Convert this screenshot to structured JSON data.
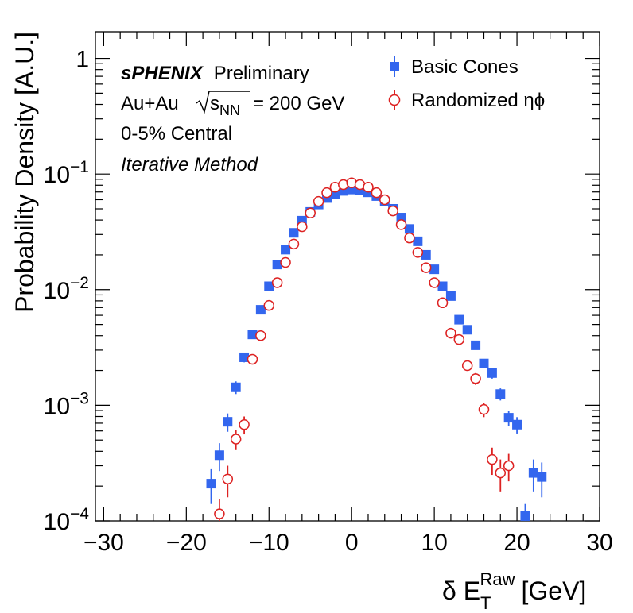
{
  "chart_data": {
    "type": "scatter",
    "xlabel": {
      "main": "δ E",
      "sup": "Raw",
      "sub": "T",
      "unit": "[GeV]"
    },
    "ylabel": "Probability Density [A.U.]",
    "xlim": [
      -31,
      30
    ],
    "ylim": [
      0.0001,
      1.7
    ],
    "yscale": "log",
    "grid": false,
    "legend_position": "top-right",
    "x_ticks": [
      -30,
      -20,
      -10,
      0,
      10,
      20,
      30
    ],
    "x_tick_labels": [
      "−30",
      "−20",
      "−10",
      "0",
      "10",
      "20",
      "30"
    ],
    "y_ticks": [
      1,
      0.1,
      0.01,
      0.001,
      0.0001
    ],
    "y_tick_labels": [
      {
        "base": "1",
        "exp": ""
      },
      {
        "base": "10",
        "exp": "−1"
      },
      {
        "base": "10",
        "exp": "−2"
      },
      {
        "base": "10",
        "exp": "−3"
      },
      {
        "base": "10",
        "exp": "−4"
      }
    ],
    "annotations": {
      "experiment": "sPHENIX",
      "status": "Preliminary",
      "system": "Au+Au",
      "sqrt_s_label": "s",
      "sqrt_s_sub": "NN",
      "energy": "= 200 GeV",
      "centrality": "0-5% Central",
      "method": "Iterative Method"
    },
    "series": [
      {
        "name": "Basic Cones",
        "marker": "filled-square",
        "color": "#3366ee",
        "points": [
          {
            "x": -17,
            "y": 0.00021,
            "err": 7e-05
          },
          {
            "x": -16,
            "y": 0.00037,
            "err": 0.0001
          },
          {
            "x": -15,
            "y": 0.00072,
            "err": 0.00013
          },
          {
            "x": -14,
            "y": 0.00143,
            "err": 0.00018
          },
          {
            "x": -13,
            "y": 0.0026,
            "err": 0.00025
          },
          {
            "x": -12,
            "y": 0.0041,
            "err": 0.0003
          },
          {
            "x": -11,
            "y": 0.0067,
            "err": 0.0004
          },
          {
            "x": -10,
            "y": 0.0107,
            "err": 0.0005
          },
          {
            "x": -9,
            "y": 0.0165,
            "err": 0.0006
          },
          {
            "x": -8,
            "y": 0.0222,
            "err": 0.0007
          },
          {
            "x": -7,
            "y": 0.031,
            "err": 0.0008
          },
          {
            "x": -6,
            "y": 0.0395,
            "err": 0.0009
          },
          {
            "x": -5,
            "y": 0.047,
            "err": 0.001
          },
          {
            "x": -4,
            "y": 0.0545,
            "err": 0.001
          },
          {
            "x": -3,
            "y": 0.062,
            "err": 0.001
          },
          {
            "x": -2,
            "y": 0.0675,
            "err": 0.001
          },
          {
            "x": -1,
            "y": 0.0715,
            "err": 0.001
          },
          {
            "x": 0,
            "y": 0.0735,
            "err": 0.001
          },
          {
            "x": 1,
            "y": 0.0725,
            "err": 0.001
          },
          {
            "x": 2,
            "y": 0.0695,
            "err": 0.001
          },
          {
            "x": 3,
            "y": 0.0645,
            "err": 0.001
          },
          {
            "x": 4,
            "y": 0.058,
            "err": 0.001
          },
          {
            "x": 5,
            "y": 0.05,
            "err": 0.001
          },
          {
            "x": 6,
            "y": 0.042,
            "err": 0.0009
          },
          {
            "x": 7,
            "y": 0.0335,
            "err": 0.0008
          },
          {
            "x": 8,
            "y": 0.0262,
            "err": 0.0007
          },
          {
            "x": 9,
            "y": 0.02,
            "err": 0.0006
          },
          {
            "x": 10,
            "y": 0.015,
            "err": 0.0005
          },
          {
            "x": 11,
            "y": 0.0107,
            "err": 0.0005
          },
          {
            "x": 12,
            "y": 0.0088,
            "err": 0.0004
          },
          {
            "x": 13,
            "y": 0.0055,
            "err": 0.0003
          },
          {
            "x": 14,
            "y": 0.0045,
            "err": 0.0003
          },
          {
            "x": 15,
            "y": 0.0033,
            "err": 0.00025
          },
          {
            "x": 16,
            "y": 0.0023,
            "err": 0.0002
          },
          {
            "x": 17,
            "y": 0.0019,
            "err": 0.0002
          },
          {
            "x": 18,
            "y": 0.00125,
            "err": 0.00015
          },
          {
            "x": 19,
            "y": 0.00078,
            "err": 0.00012
          },
          {
            "x": 20,
            "y": 0.00068,
            "err": 0.00011
          },
          {
            "x": 21,
            "y": 0.00011,
            "err": 3e-05
          },
          {
            "x": 22,
            "y": 0.00026,
            "err": 8e-05
          },
          {
            "x": 23,
            "y": 0.00024,
            "err": 8e-05
          }
        ]
      },
      {
        "name": "Randomized ηϕ",
        "marker": "open-circle",
        "color": "#dd2222",
        "points": [
          {
            "x": -16,
            "y": 0.000115,
            "err": 4e-05
          },
          {
            "x": -15,
            "y": 0.00023,
            "err": 7e-05
          },
          {
            "x": -14,
            "y": 0.00051,
            "err": 0.0001
          },
          {
            "x": -13,
            "y": 0.00068,
            "err": 0.00012
          },
          {
            "x": -12,
            "y": 0.0025,
            "err": 0.00025
          },
          {
            "x": -11,
            "y": 0.004,
            "err": 0.0003
          },
          {
            "x": -10,
            "y": 0.0073,
            "err": 0.0004
          },
          {
            "x": -9,
            "y": 0.0115,
            "err": 0.0005
          },
          {
            "x": -8,
            "y": 0.0172,
            "err": 0.0006
          },
          {
            "x": -7,
            "y": 0.0248,
            "err": 0.0007
          },
          {
            "x": -6,
            "y": 0.035,
            "err": 0.0008
          },
          {
            "x": -5,
            "y": 0.046,
            "err": 0.0009
          },
          {
            "x": -4,
            "y": 0.058,
            "err": 0.001
          },
          {
            "x": -3,
            "y": 0.069,
            "err": 0.001
          },
          {
            "x": -2,
            "y": 0.077,
            "err": 0.001
          },
          {
            "x": -1,
            "y": 0.081,
            "err": 0.001
          },
          {
            "x": 0,
            "y": 0.084,
            "err": 0.001
          },
          {
            "x": 1,
            "y": 0.081,
            "err": 0.001
          },
          {
            "x": 2,
            "y": 0.077,
            "err": 0.001
          },
          {
            "x": 3,
            "y": 0.069,
            "err": 0.001
          },
          {
            "x": 4,
            "y": 0.06,
            "err": 0.001
          },
          {
            "x": 5,
            "y": 0.048,
            "err": 0.0009
          },
          {
            "x": 6,
            "y": 0.0365,
            "err": 0.0008
          },
          {
            "x": 7,
            "y": 0.028,
            "err": 0.0007
          },
          {
            "x": 8,
            "y": 0.021,
            "err": 0.0006
          },
          {
            "x": 9,
            "y": 0.0155,
            "err": 0.0005
          },
          {
            "x": 10,
            "y": 0.0115,
            "err": 0.0005
          },
          {
            "x": 11,
            "y": 0.0077,
            "err": 0.0004
          },
          {
            "x": 12,
            "y": 0.0042,
            "err": 0.0003
          },
          {
            "x": 13,
            "y": 0.0037,
            "err": 0.0003
          },
          {
            "x": 14,
            "y": 0.0022,
            "err": 0.0002
          },
          {
            "x": 15,
            "y": 0.0017,
            "err": 0.0002
          },
          {
            "x": 16,
            "y": 0.00092,
            "err": 0.00013
          },
          {
            "x": 17,
            "y": 0.00034,
            "err": 9e-05
          },
          {
            "x": 18,
            "y": 0.00026,
            "err": 8e-05
          },
          {
            "x": 19,
            "y": 0.0003,
            "err": 8e-05
          }
        ]
      }
    ]
  }
}
